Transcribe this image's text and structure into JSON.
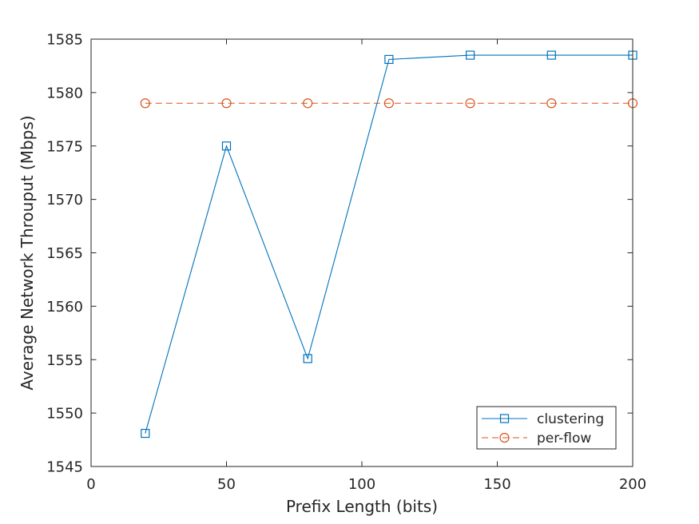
{
  "chart_data": {
    "type": "line",
    "title": "",
    "xlabel": "Prefix Length (bits)",
    "ylabel": "Average Network Throuput (Mbps)",
    "xlim": [
      0,
      200
    ],
    "ylim": [
      1545,
      1585
    ],
    "xticks": [
      0,
      50,
      100,
      150,
      200
    ],
    "yticks": [
      1545,
      1550,
      1555,
      1560,
      1565,
      1570,
      1575,
      1580,
      1585
    ],
    "grid": false,
    "legend_position": "bottom-right",
    "x": [
      20,
      50,
      80,
      110,
      140,
      170,
      200
    ],
    "series": [
      {
        "name": "clustering",
        "values": [
          1548.1,
          1575.0,
          1555.1,
          1583.1,
          1583.5,
          1583.5,
          1583.5
        ],
        "color": "#0072bd",
        "marker": "square",
        "line_style": "solid"
      },
      {
        "name": "per-flow",
        "values": [
          1579.0,
          1579.0,
          1579.0,
          1579.0,
          1579.0,
          1579.0,
          1579.0
        ],
        "color": "#d95319",
        "marker": "circle",
        "line_style": "dashed"
      }
    ]
  }
}
